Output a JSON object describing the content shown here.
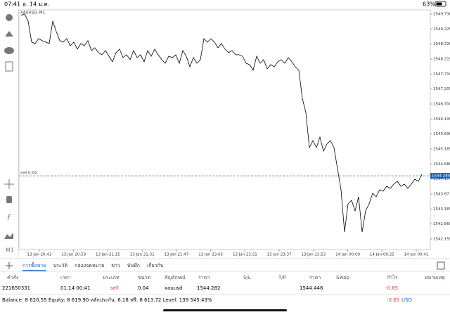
{
  "status_bar": {
    "time": "07:41",
    "date": "อ. 14 ม.ค.",
    "battery": "63%"
  },
  "toolbar": {
    "timeframe": "M1"
  },
  "chart_data": {
    "type": "line",
    "title": "XAUUSD, M1",
    "color": "#000000",
    "values": [
      1549.683,
      1549.73,
      1549.493,
      1548.783,
      1548.736,
      1548.901,
      1548.83,
      1548.783,
      1548.736,
      1549.493,
      1549.138,
      1548.83,
      1548.783,
      1548.901,
      1548.665,
      1548.783,
      1548.546,
      1548.736,
      1548.665,
      1548.83,
      1548.499,
      1548.594,
      1548.428,
      1548.357,
      1548.499,
      1548.309,
      1548.12,
      1548.428,
      1548.546,
      1548.262,
      1548.357,
      1548.191,
      1548.499,
      1548.262,
      1548.357,
      1548.12,
      1548.499,
      1548.309,
      1548.546,
      1548.357,
      1548.191,
      1548.072,
      1548.309,
      1548.262,
      1548.357,
      1548.072,
      1548.499,
      1548.309,
      1547.954,
      1548.262,
      1548.072,
      1548.191,
      1548.901,
      1548.783,
      1548.901,
      1548.783,
      1548.594,
      1548.736,
      1548.546,
      1548.428,
      1548.499,
      1548.357,
      1548.357,
      1548.309,
      1548.072,
      1548.025,
      1547.836,
      1548.309,
      1548.072,
      1548.191,
      1547.883,
      1548.025,
      1547.954,
      1548.12,
      1548.191,
      1548.072,
      1548.262,
      1548.12,
      1547.954,
      1547.836,
      1546.889,
      1546.415,
      1545.231,
      1545.468,
      1545.231,
      1545.587,
      1545.113,
      1545.35,
      1545.468,
      1545.231,
      1544.521,
      1543.811,
      1542.391,
      1543.338,
      1543.456,
      1543.101,
      1543.575,
      1542.391,
      1543.101,
      1543.338,
      1543.693,
      1543.575,
      1543.811,
      1543.764,
      1543.929,
      1543.858,
      1544.001,
      1544.095,
      1543.929,
      1544.001,
      1543.858,
      1544.001,
      1544.166,
      1544.095,
      1544.332
    ],
    "ylim": [
      1541.8,
      1549.87
    ],
    "yticks": [
      {
        "value": 1549.73,
        "label": "1549.730"
      },
      1549.225,
      {
        "value": 1548.72,
        "label": "1548.720"
      },
      1548.215,
      {
        "value": 1547.71,
        "label": "1547.710"
      },
      1547.205,
      {
        "value": 1546.7,
        "label": "1546.700"
      },
      1546.195,
      {
        "value": 1545.69,
        "label": "1545.690"
      },
      1545.185,
      {
        "value": 1544.68,
        "label": "1544.680"
      },
      1544.175,
      1543.67,
      1543.165,
      {
        "value": 1542.66,
        "label": "1542.660"
      },
      1542.155
    ],
    "xticks": [
      "13 Jan 20:43",
      "13 Jan 20:59",
      "13 Jan 21:15",
      "13 Jan 21:31",
      "13 Jan 21:47",
      "13 Jan 23:05",
      "13 Jan 23:21",
      "13 Jan 23:37",
      "13 Jan 23:53",
      "14 Jan 00:09",
      "14 Jan 00:25",
      "14 Jan 00:41"
    ],
    "order_line": {
      "label": "sell 0.04",
      "value": 1544.282
    },
    "bid": 1544.284
  },
  "tabs": [
    "การซื้อขาย",
    "ประวัติ",
    "กล่องจดหมาย",
    "ข่าว",
    "บันทึก",
    "เกี่ยวกับ"
  ],
  "table": {
    "headers": [
      "คำสั่ง",
      "เวลา",
      "ประเภท",
      "ขนาด",
      "สัญลักษณ์",
      "ราคา",
      "S/L",
      "T/P",
      "ราคา",
      "Swap",
      "กำไร",
      "หมายเหตุ"
    ],
    "row": {
      "order": "221650331",
      "time": "01.14 00:41",
      "type": "sell",
      "volume": "0.04",
      "symbol": "xauusd",
      "open_price": "1544.282",
      "price": "1544.446",
      "profit": "-0.65"
    }
  },
  "footer": {
    "summary": "Balance: 8 620.55 Equity: 8 619.90 หลักประกัน: 6.18 ฟรี: 8 613.72 Level: 139 545.43%",
    "profit": "-0.65",
    "currency": "USD"
  }
}
